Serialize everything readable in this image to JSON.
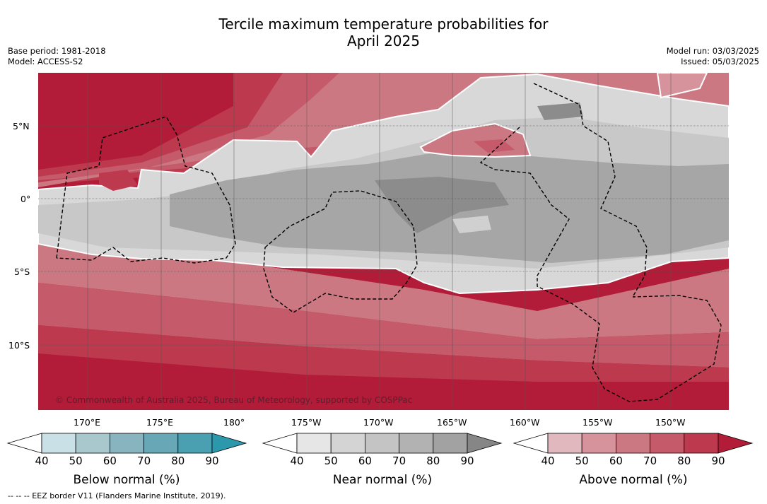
{
  "title_line1": "Tercile maximum temperature probabilities for",
  "title_line2": "April 2025",
  "base_period": "Base period: 1981-2018",
  "model": "Model: ACCESS-S2",
  "model_run": "Model run: 03/03/2025",
  "issued": "Issued: 05/03/2025",
  "copyright": "© Commonwealth of Australia 2025, Bureau of Meteorology, supported by COSPPac",
  "footer": "--  --  -- EEZ border V11 (Flanders Marine Institute, 2019).",
  "lat_labels": [
    "5°N",
    "0°",
    "5°S",
    "10°S"
  ],
  "lon_labels": [
    "170°E",
    "175°E",
    "180°",
    "175°W",
    "170°W",
    "165°W",
    "160°W",
    "155°W",
    "150°W"
  ],
  "colorbars": [
    {
      "label": "Below normal (%)",
      "ticks": [
        "40",
        "50",
        "60",
        "70",
        "80",
        "90"
      ],
      "colors": [
        "#c8e0e6",
        "#a8c8ce",
        "#88b4bf",
        "#68a8b6",
        "#4aa0b0",
        "#2c98ac"
      ]
    },
    {
      "label": "Near normal (%)",
      "ticks": [
        "40",
        "50",
        "60",
        "70",
        "80",
        "90"
      ],
      "colors": [
        "#e6e6e6",
        "#d4d4d4",
        "#c4c4c4",
        "#b2b2b2",
        "#a2a2a2",
        "#868686"
      ]
    },
    {
      "label": "Above normal (%)",
      "ticks": [
        "40",
        "50",
        "60",
        "70",
        "80",
        "90"
      ],
      "colors": [
        "#e0b8be",
        "#d6939c",
        "#cc7882",
        "#c45a6a",
        "#bd3a4e",
        "#b31c38"
      ]
    }
  ],
  "colors": {
    "above90": "#b31c38",
    "above80": "#bd3a4e",
    "above70": "#c45a6a",
    "above60": "#cc7882",
    "above50": "#d6939c",
    "near40": "#d8d8d8",
    "near50": "#c8c8c8",
    "near60": "#a6a6a6",
    "near70": "#8c8c8c"
  }
}
